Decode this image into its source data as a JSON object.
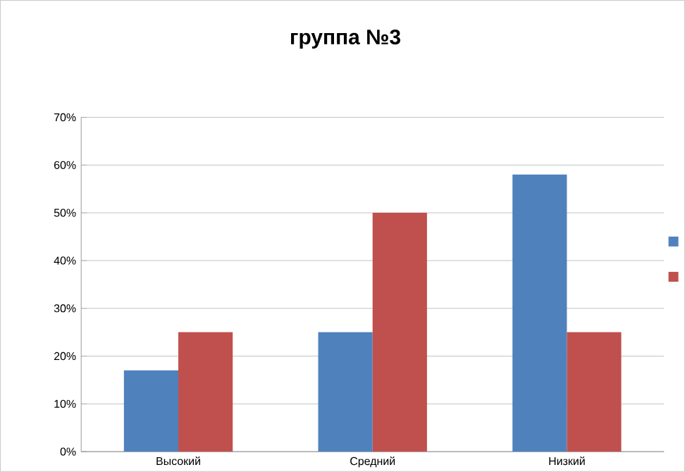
{
  "chart_data": {
    "type": "bar",
    "title": "группа №3",
    "categories": [
      "Высокий",
      "Средний",
      "Низкий"
    ],
    "series": [
      {
        "color": "#4f81bd",
        "values": [
          17,
          25,
          58
        ]
      },
      {
        "color": "#c0504d",
        "values": [
          25,
          50,
          25
        ]
      }
    ],
    "ylim": [
      0,
      70
    ],
    "yticks": [
      {
        "value": 0,
        "label": "0%"
      },
      {
        "value": 10,
        "label": "10%"
      },
      {
        "value": 20,
        "label": "20%"
      },
      {
        "value": 30,
        "label": "30%"
      },
      {
        "value": 40,
        "label": "40%"
      },
      {
        "value": 50,
        "label": "50%"
      },
      {
        "value": 60,
        "label": "60%"
      },
      {
        "value": 70,
        "label": "70%"
      }
    ],
    "grid": "y"
  }
}
